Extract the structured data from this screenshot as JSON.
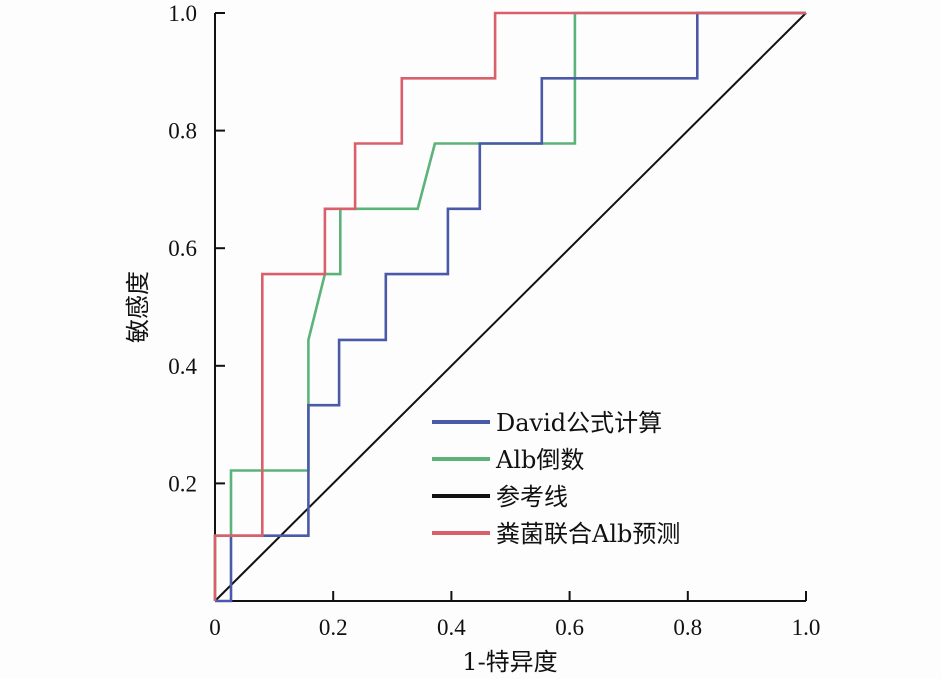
{
  "chart_data": {
    "type": "line",
    "title": "",
    "xlabel": "1-特异度",
    "ylabel": "敏感度",
    "xlim": [
      0,
      1
    ],
    "ylim": [
      0,
      1
    ],
    "xticks": [
      "0",
      "0.2",
      "0.4",
      "0.6",
      "0.8",
      "1.0"
    ],
    "yticks": [
      "0.2",
      "0.4",
      "0.6",
      "0.8",
      "1.0"
    ],
    "grid": false,
    "legend_position": "bottom-right",
    "series": [
      {
        "name": "David公式计算",
        "color": "#4a5aa8",
        "points": [
          [
            0,
            0
          ],
          [
            0.027,
            0
          ],
          [
            0.027,
            0.111
          ],
          [
            0.158,
            0.111
          ],
          [
            0.158,
            0.333
          ],
          [
            0.21,
            0.333
          ],
          [
            0.21,
            0.444
          ],
          [
            0.289,
            0.444
          ],
          [
            0.289,
            0.556
          ],
          [
            0.394,
            0.556
          ],
          [
            0.394,
            0.667
          ],
          [
            0.448,
            0.667
          ],
          [
            0.448,
            0.778
          ],
          [
            0.553,
            0.778
          ],
          [
            0.553,
            0.889
          ],
          [
            0.816,
            0.889
          ],
          [
            0.816,
            1.0
          ],
          [
            1.0,
            1.0
          ]
        ]
      },
      {
        "name": "Alb倒数",
        "color": "#5cb37a",
        "points": [
          [
            0,
            0
          ],
          [
            0,
            0.111
          ],
          [
            0.027,
            0.111
          ],
          [
            0.027,
            0.222
          ],
          [
            0.158,
            0.222
          ],
          [
            0.158,
            0.444
          ],
          [
            0.186,
            0.556
          ],
          [
            0.212,
            0.556
          ],
          [
            0.212,
            0.667
          ],
          [
            0.343,
            0.667
          ],
          [
            0.372,
            0.778
          ],
          [
            0.609,
            0.778
          ],
          [
            0.609,
            1.0
          ],
          [
            1.0,
            1.0
          ]
        ]
      },
      {
        "name": "参考线",
        "color": "#111111",
        "points": [
          [
            0,
            0
          ],
          [
            1,
            1
          ]
        ]
      },
      {
        "name": "粪菌联合Alb预测",
        "color": "#d9606a",
        "points": [
          [
            0,
            0
          ],
          [
            0,
            0.111
          ],
          [
            0.08,
            0.111
          ],
          [
            0.08,
            0.556
          ],
          [
            0.186,
            0.556
          ],
          [
            0.186,
            0.667
          ],
          [
            0.237,
            0.667
          ],
          [
            0.237,
            0.778
          ],
          [
            0.316,
            0.778
          ],
          [
            0.316,
            0.889
          ],
          [
            0.474,
            0.889
          ],
          [
            0.474,
            1.0
          ],
          [
            1.0,
            1.0
          ]
        ]
      }
    ]
  }
}
